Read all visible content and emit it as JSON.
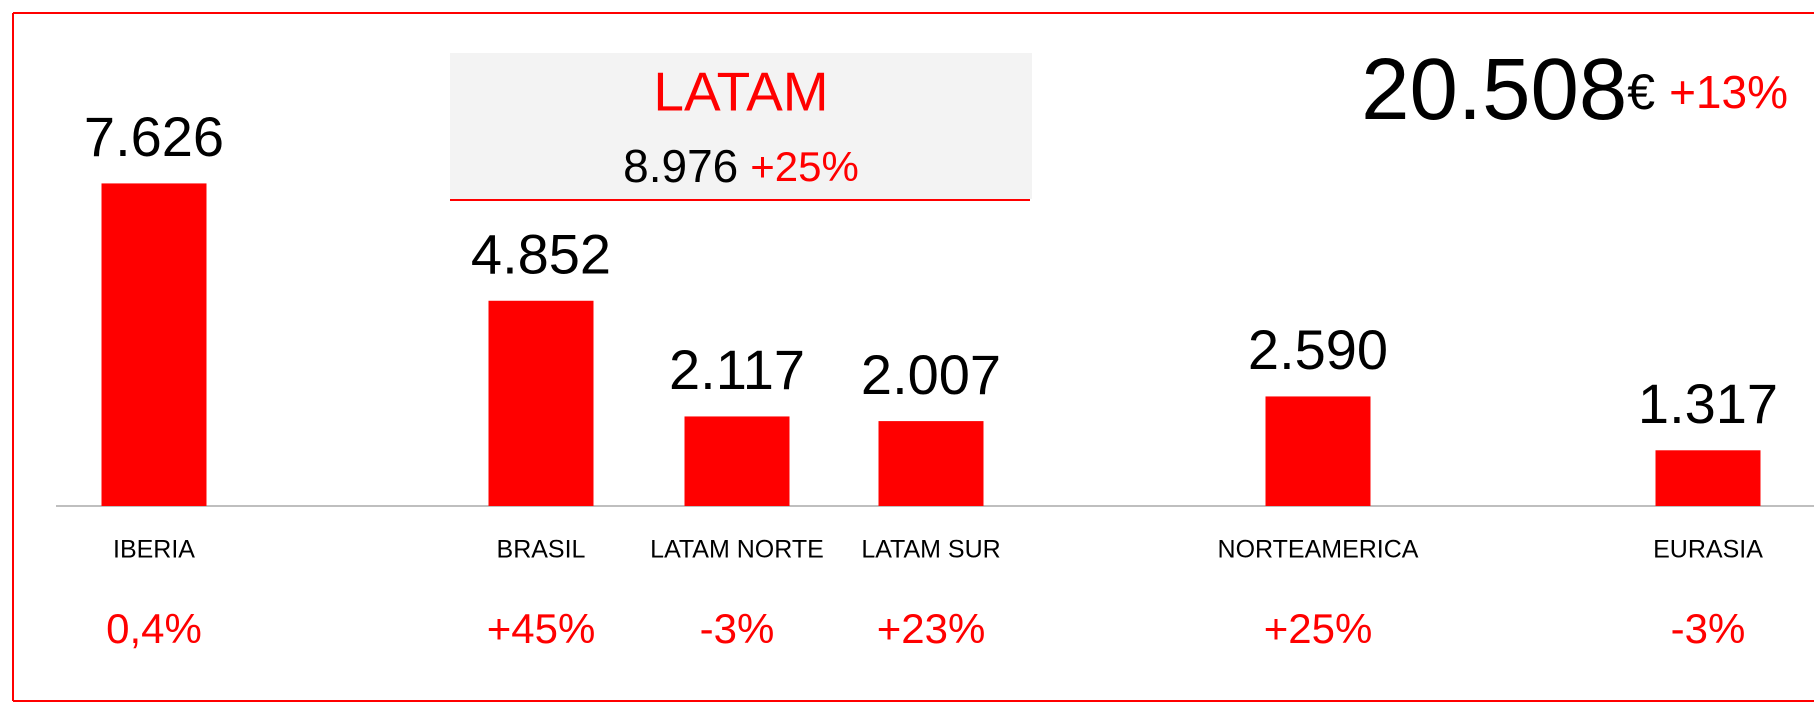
{
  "chart_data": {
    "type": "bar",
    "categories": [
      "IBERIA",
      "BRASIL",
      "LATAM NORTE",
      "LATAM SUR",
      "NORTEAMERICA",
      "EURASIA"
    ],
    "values": [
      7626,
      4852,
      2117,
      2007,
      2590,
      1317
    ],
    "value_labels": [
      "7.626",
      "4.852",
      "2.117",
      "2.007",
      "2.590",
      "1.317"
    ],
    "change_labels": [
      "0,4%",
      "+45%",
      "-3%",
      "+23%",
      "+25%",
      "-3%"
    ],
    "color": "#ff0000",
    "group": {
      "label": "LATAM",
      "value": "8.976",
      "change": "+25%"
    },
    "total": {
      "value": "20.508",
      "unit": "€",
      "change": "+13%"
    }
  }
}
